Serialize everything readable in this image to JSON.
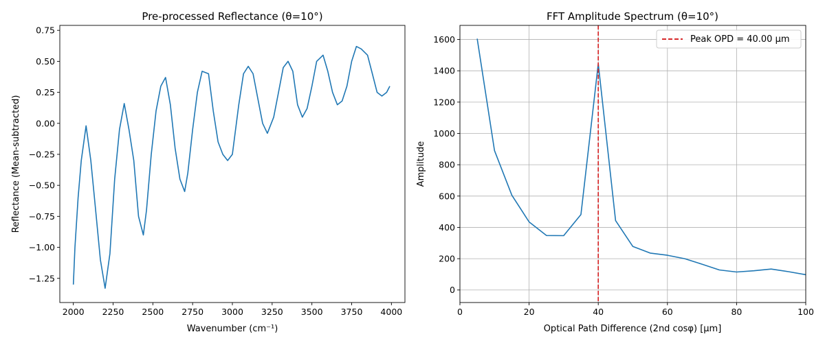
{
  "chart_data": [
    {
      "type": "line",
      "title": "Pre-processed Reflectance (θ=10°)",
      "xlabel": "Wavenumber (cm⁻¹)",
      "ylabel": "Reflectance (Mean-subtracted)",
      "xlim": [
        1915,
        4085
      ],
      "ylim": [
        -1.445,
        0.79
      ],
      "xticks": [
        2000,
        2250,
        2500,
        2750,
        3000,
        3250,
        3500,
        3750,
        4000
      ],
      "xtick_labels": [
        "2000",
        "2250",
        "2500",
        "2750",
        "3000",
        "3250",
        "3500",
        "3750",
        "4000"
      ],
      "yticks": [
        -1.25,
        -1.0,
        -0.75,
        -0.5,
        -0.25,
        0.0,
        0.25,
        0.5,
        0.75
      ],
      "ytick_labels": [
        "−1.25",
        "−1.00",
        "−0.75",
        "−0.50",
        "−0.25",
        "0.00",
        "0.25",
        "0.50",
        "0.75"
      ],
      "grid": false,
      "color": "#1f77b4",
      "series": [
        {
          "x": [
            2000,
            2010,
            2030,
            2050,
            2080,
            2110,
            2140,
            2170,
            2200,
            2230,
            2260,
            2290,
            2320,
            2350,
            2380,
            2410,
            2440,
            2460,
            2490,
            2520,
            2550,
            2580,
            2610,
            2640,
            2670,
            2700,
            2720,
            2750,
            2780,
            2810,
            2850,
            2880,
            2910,
            2940,
            2970,
            3000,
            3040,
            3070,
            3100,
            3130,
            3160,
            3190,
            3220,
            3260,
            3290,
            3320,
            3350,
            3380,
            3410,
            3440,
            3470,
            3500,
            3530,
            3570,
            3600,
            3630,
            3660,
            3690,
            3720,
            3750,
            3780,
            3810,
            3850,
            3880,
            3910,
            3940,
            3970,
            3990
          ],
          "y": [
            -1.3,
            -1.0,
            -0.6,
            -0.3,
            -0.02,
            -0.3,
            -0.7,
            -1.1,
            -1.33,
            -1.05,
            -0.45,
            -0.05,
            0.16,
            -0.05,
            -0.3,
            -0.75,
            -0.9,
            -0.7,
            -0.25,
            0.1,
            0.3,
            0.37,
            0.15,
            -0.2,
            -0.45,
            -0.55,
            -0.4,
            -0.05,
            0.25,
            0.42,
            0.4,
            0.1,
            -0.15,
            -0.25,
            -0.3,
            -0.25,
            0.15,
            0.4,
            0.46,
            0.4,
            0.2,
            0.0,
            -0.08,
            0.05,
            0.25,
            0.45,
            0.5,
            0.42,
            0.15,
            0.05,
            0.12,
            0.3,
            0.5,
            0.55,
            0.42,
            0.25,
            0.15,
            0.18,
            0.3,
            0.5,
            0.62,
            0.6,
            0.55,
            0.4,
            0.25,
            0.22,
            0.25,
            0.3
          ]
        }
      ]
    },
    {
      "type": "line",
      "title": "FFT Amplitude Spectrum (θ=10°)",
      "xlabel": "Optical Path Difference (2nd cosφ) [μm]",
      "ylabel": "Amplitude",
      "xlim": [
        0,
        100
      ],
      "ylim": [
        -80,
        1690
      ],
      "xticks": [
        0,
        20,
        40,
        60,
        80,
        100
      ],
      "xtick_labels": [
        "0",
        "20",
        "40",
        "60",
        "80",
        "100"
      ],
      "yticks": [
        0,
        200,
        400,
        600,
        800,
        1000,
        1200,
        1400,
        1600
      ],
      "ytick_labels": [
        "0",
        "200",
        "400",
        "600",
        "800",
        "1000",
        "1200",
        "1400",
        "1600"
      ],
      "grid": true,
      "legend_position": "top-right",
      "color": "#1f77b4",
      "series": [
        {
          "x": [
            5,
            10,
            15,
            20,
            25,
            30,
            35,
            40,
            45,
            50,
            55,
            60,
            65,
            70,
            75,
            80,
            85,
            90,
            95,
            100
          ],
          "y": [
            1605,
            890,
            605,
            435,
            348,
            347,
            482,
            1445,
            443,
            278,
            236,
            222,
            200,
            165,
            128,
            115,
            123,
            134,
            117,
            98
          ]
        }
      ],
      "vline": {
        "x": 40,
        "color": "#d62728",
        "label": "Peak OPD = 40.00 μm"
      }
    }
  ]
}
